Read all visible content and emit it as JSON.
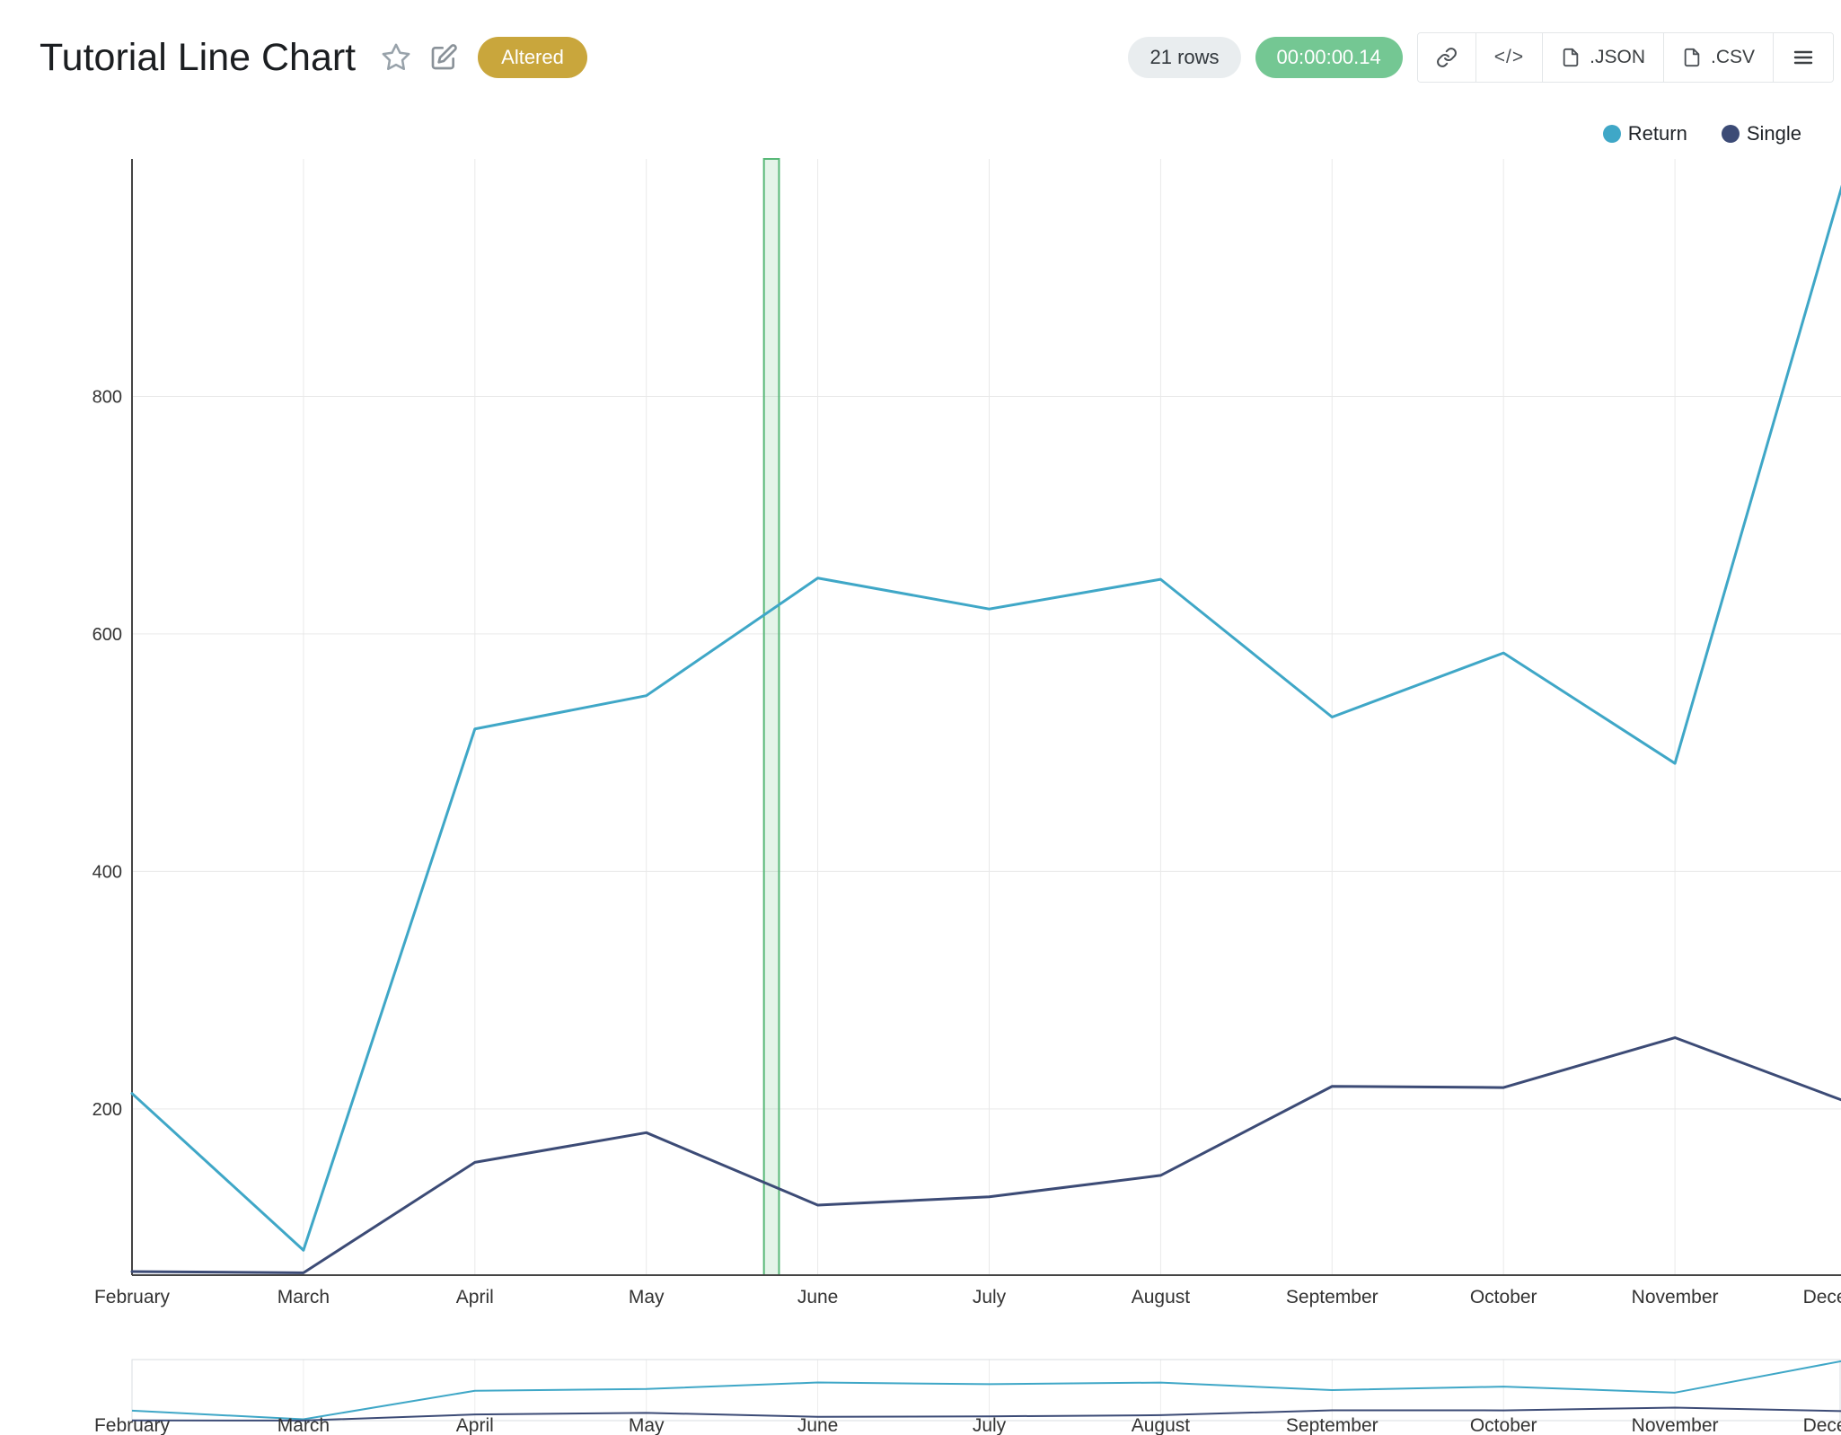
{
  "header": {
    "title": "Tutorial Line Chart",
    "status_badge": "Altered",
    "rows_count": "21 rows",
    "duration": "00:00:00.14",
    "code_icon_label": "</>",
    "export_json_label": ".JSON",
    "export_csv_label": ".CSV"
  },
  "colors": {
    "altered_badge": "#C9A63C",
    "rows_badge": "#E9EDEF",
    "duration_badge": "#74C793",
    "grid": "#e9e9e9",
    "axis": "#444444",
    "tick_text": "#333333"
  },
  "chart_data": {
    "type": "line",
    "categories": [
      "February",
      "March",
      "April",
      "May",
      "June",
      "July",
      "August",
      "September",
      "October",
      "November",
      "December"
    ],
    "series": [
      {
        "name": "Return",
        "color": "#3FA7C7",
        "values": [
          213,
          81,
          520,
          548,
          647,
          621,
          646,
          530,
          584,
          491,
          990
        ]
      },
      {
        "name": "Single",
        "color": "#3C4B76",
        "values": [
          63,
          62,
          155,
          180,
          119,
          126,
          144,
          219,
          218,
          260,
          206
        ]
      }
    ],
    "title": "",
    "xlabel": "",
    "ylabel": "",
    "ylim": [
      60,
      1000
    ],
    "yticks": [
      200,
      400,
      600,
      800
    ],
    "grid": true,
    "legend_position": "top-right",
    "annotation": {
      "type": "vertical-band",
      "x_index": 3.73,
      "width_index": 0.088,
      "stroke": "#58B878",
      "fill": "rgba(88,184,120,0.16)"
    },
    "range_slider": true
  }
}
